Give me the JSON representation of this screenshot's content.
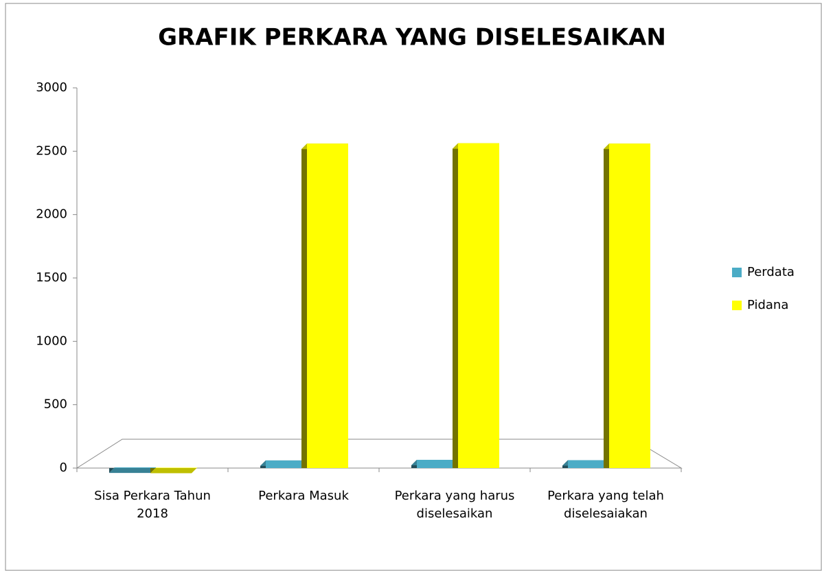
{
  "chart_data": {
    "type": "bar",
    "title": "GRAFIK PERKARA YANG DISELESAIKAN",
    "categories": [
      "Sisa Perkara Tahun 2018",
      "Perkara Masuk",
      "Perkara yang harus diselesaikan",
      "Perkara yang telah diselesaiakan"
    ],
    "series": [
      {
        "name": "Perdata",
        "color": "#4bacc6",
        "values": [
          5,
          60,
          65,
          62
        ]
      },
      {
        "name": "Pidana",
        "color": "#ffff00",
        "values": [
          3,
          2560,
          2563,
          2560
        ]
      }
    ],
    "ylim": [
      0,
      3000
    ],
    "yticks": [
      0,
      500,
      1000,
      1500,
      2000,
      2500,
      3000
    ],
    "legend": "right"
  }
}
